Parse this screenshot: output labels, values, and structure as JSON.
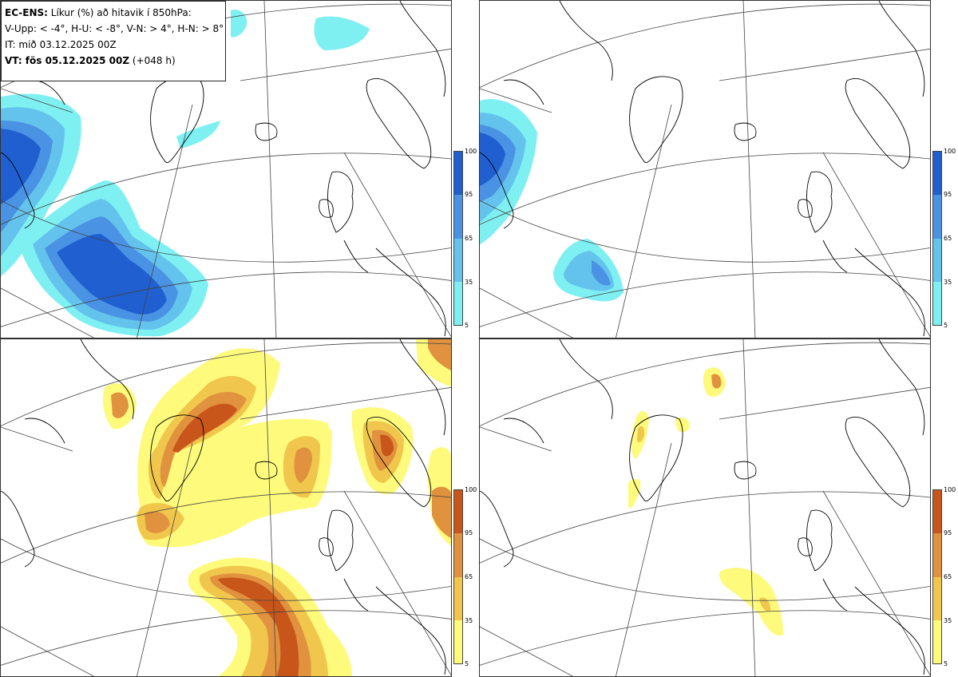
{
  "legend": {
    "line1_bold": "EC-ENS:",
    "line1_rest": " Líkur (%) að hitavik í 850hPa:",
    "line2": "V-Upp: < -4°, H-U: < -8°, V-N: > 4°, H-N: > 8°",
    "line3": "IT: mið 03.12.2025 00Z",
    "line4_bold": "VT: fös 05.12.2025 00Z",
    "line4_rest": " (+048 h)"
  },
  "panels": [
    {
      "id": "V-Upp",
      "quantity": "probability (%) anomaly < -4°"
    },
    {
      "id": "H-U",
      "quantity": "probability (%) anomaly < -8°"
    },
    {
      "id": "V-N",
      "quantity": "probability (%) anomaly > 4°"
    },
    {
      "id": "H-N",
      "quantity": "probability (%) anomaly > 8°"
    }
  ],
  "colorbar_cold": {
    "ticks": [
      "100",
      "95",
      "65",
      "35",
      "5"
    ],
    "colors": [
      "#1f5fd0",
      "#4a92e3",
      "#64c3ec",
      "#7ff0f2"
    ]
  },
  "colorbar_warm": {
    "ticks": [
      "100",
      "95",
      "65",
      "35",
      "5"
    ],
    "colors": [
      "#c8561a",
      "#e0923e",
      "#f0c64c",
      "#fdfa7c"
    ]
  },
  "colors": {
    "cold_levels": [
      "#7ff0f2",
      "#64c3ec",
      "#4a92e3",
      "#1f5fd0"
    ],
    "warm_levels": [
      "#fdfa7c",
      "#f0c64c",
      "#e0923e",
      "#c8561a"
    ]
  }
}
